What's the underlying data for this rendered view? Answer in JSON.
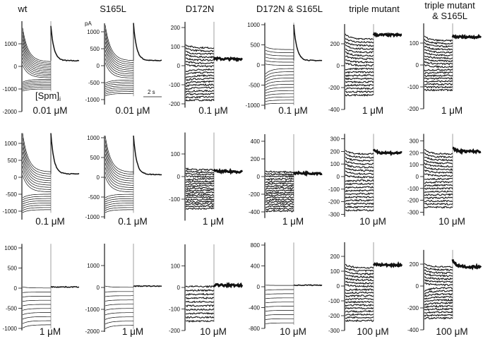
{
  "figure": {
    "column_titles": [
      "wt",
      "S165L",
      "D172N",
      "D172N & S165L",
      "triple mutant",
      "triple mutant\n& S165L"
    ],
    "column_titles_lines": [
      [
        "wt"
      ],
      [
        "S165L"
      ],
      [
        "D172N"
      ],
      [
        "D172N & S165L"
      ],
      [
        "triple mutant"
      ],
      [
        "triple mutant",
        "& S165L"
      ]
    ],
    "y_unit_label": "pA",
    "spm_label": "[Spm]",
    "spm_subscript": "i",
    "time_scale_bar_label": "2 s"
  },
  "chart_data": {
    "type": "line",
    "title": "",
    "xlabel": "",
    "ylabel": "pA",
    "grid": false,
    "scale_bar": {
      "time_s": 2
    },
    "panels": [
      {
        "row": 0,
        "col": 0,
        "construct": "wt",
        "conc_label": "0.01 μM",
        "ticks": [
          1000,
          0,
          -1000,
          -2000
        ],
        "ylim": [
          -2000,
          2000
        ],
        "n_traces": 18,
        "step_range": [
          -1100,
          1700
        ],
        "tail_level": 250,
        "tail_peak": 1800,
        "decay": "strong"
      },
      {
        "row": 0,
        "col": 1,
        "construct": "S165L",
        "conc_label": "0.01 μM",
        "ticks": [
          1000,
          500,
          0,
          -500,
          -1000
        ],
        "ylim": [
          -1150,
          1250
        ],
        "n_traces": 18,
        "step_range": [
          -900,
          1200
        ],
        "tail_level": 150,
        "tail_peak": 1250,
        "decay": "strong"
      },
      {
        "row": 0,
        "col": 2,
        "construct": "D172N",
        "conc_label": "0.1 μM",
        "ticks": [
          200,
          100,
          0,
          -100,
          -200
        ],
        "ylim": [
          -220,
          230
        ],
        "n_traces": 18,
        "step_range": [
          -185,
          110
        ],
        "tail_level": 35,
        "tail_peak": 40,
        "decay": "weak"
      },
      {
        "row": 0,
        "col": 3,
        "construct": "D172N & S165L",
        "conc_label": "0.1 μM",
        "ticks": [
          1000,
          500,
          0,
          -500,
          -1000
        ],
        "ylim": [
          -1100,
          1050
        ],
        "n_traces": 18,
        "step_range": [
          -1000,
          450
        ],
        "tail_level": 110,
        "tail_peak": 1000,
        "decay": "medium"
      },
      {
        "row": 0,
        "col": 4,
        "construct": "triple mutant",
        "conc_label": "1 μM",
        "ticks": [
          200,
          0,
          -200,
          -400
        ],
        "ylim": [
          -400,
          380
        ],
        "n_traces": 18,
        "step_range": [
          -270,
          285
        ],
        "tail_level": 280,
        "tail_peak": 285,
        "decay": "none"
      },
      {
        "row": 0,
        "col": 5,
        "construct": "triple mutant & S165L",
        "conc_label": "1 μM",
        "ticks": [
          100,
          0,
          -100,
          -200
        ],
        "ylim": [
          -200,
          190
        ],
        "n_traces": 18,
        "step_range": [
          -115,
          130
        ],
        "tail_level": 128,
        "tail_peak": 130,
        "decay": "none"
      },
      {
        "row": 1,
        "col": 0,
        "construct": "wt",
        "conc_label": "0.1 μM",
        "ticks": [
          1000,
          500,
          0,
          -500,
          -1000
        ],
        "ylim": [
          -1250,
          1300
        ],
        "n_traces": 18,
        "step_range": [
          -1050,
          1300
        ],
        "tail_level": 100,
        "tail_peak": 1300,
        "decay": "strong"
      },
      {
        "row": 1,
        "col": 1,
        "construct": "S165L",
        "conc_label": "0.1 μM",
        "ticks": [
          1000,
          500,
          0,
          -500,
          -1000
        ],
        "ylim": [
          -1050,
          1050
        ],
        "n_traces": 18,
        "step_range": [
          -900,
          1050
        ],
        "tail_level": 70,
        "tail_peak": 1050,
        "decay": "strong"
      },
      {
        "row": 1,
        "col": 2,
        "construct": "D172N",
        "conc_label": "1 μM",
        "ticks": [
          100,
          0,
          -100
        ],
        "ylim": [
          -195,
          195
        ],
        "n_traces": 18,
        "step_range": [
          -145,
          35
        ],
        "tail_level": 22,
        "tail_peak": 25,
        "decay": "weak"
      },
      {
        "row": 1,
        "col": 3,
        "construct": "D172N & S165L",
        "conc_label": "1 μM",
        "ticks": [
          400,
          200,
          0,
          -200,
          -400
        ],
        "ylim": [
          -470,
          480
        ],
        "n_traces": 18,
        "step_range": [
          -400,
          60
        ],
        "tail_level": 38,
        "tail_peak": 40,
        "decay": "weak"
      },
      {
        "row": 1,
        "col": 4,
        "construct": "triple mutant",
        "conc_label": "10 μM",
        "ticks": [
          300,
          200,
          100,
          0,
          -100,
          -200,
          -300
        ],
        "ylim": [
          -320,
          340
        ],
        "n_traces": 18,
        "step_range": [
          -270,
          210
        ],
        "tail_level": 188,
        "tail_peak": 220,
        "decay": "none"
      },
      {
        "row": 1,
        "col": 5,
        "construct": "triple mutant & S165L",
        "conc_label": "10 μM",
        "ticks": [
          300,
          200,
          100,
          0,
          -100,
          -200,
          -300
        ],
        "ylim": [
          -330,
          360
        ],
        "n_traces": 18,
        "step_range": [
          -260,
          225
        ],
        "tail_level": 212,
        "tail_peak": 240,
        "decay": "none"
      },
      {
        "row": 2,
        "col": 0,
        "construct": "wt",
        "conc_label": "1 μM",
        "ticks": [
          1000,
          500,
          0,
          -500,
          -1000
        ],
        "ylim": [
          -1050,
          1100
        ],
        "n_traces": 10,
        "step_range": [
          -1000,
          30
        ],
        "tail_level": 30,
        "tail_peak": 30,
        "decay": "strong"
      },
      {
        "row": 2,
        "col": 1,
        "construct": "S165L",
        "conc_label": "1 μM",
        "ticks": [
          1000,
          0,
          -1000,
          -2000
        ],
        "ylim": [
          -2050,
          2000
        ],
        "n_traces": 10,
        "step_range": [
          -1900,
          60
        ],
        "tail_level": 60,
        "tail_peak": 60,
        "decay": "strong"
      },
      {
        "row": 2,
        "col": 2,
        "construct": "D172N",
        "conc_label": "10 μM",
        "ticks": [
          100,
          0,
          -100,
          -200
        ],
        "ylim": [
          -200,
          200
        ],
        "n_traces": 10,
        "step_range": [
          -160,
          5
        ],
        "tail_level": 10,
        "tail_peak": 12,
        "decay": "weak"
      },
      {
        "row": 2,
        "col": 3,
        "construct": "D172N & S165L",
        "conc_label": "10 μM",
        "ticks": [
          800,
          400,
          0,
          -400,
          -800
        ],
        "ylim": [
          -800,
          850
        ],
        "n_traces": 10,
        "step_range": [
          -730,
          30
        ],
        "tail_level": 30,
        "tail_peak": 30,
        "decay": "medium"
      },
      {
        "row": 2,
        "col": 4,
        "construct": "triple mutant",
        "conc_label": "100 μM",
        "ticks": [
          200,
          100,
          0,
          -100,
          -200,
          -300
        ],
        "ylim": [
          -300,
          300
        ],
        "n_traces": 18,
        "step_range": [
          -235,
          145
        ],
        "tail_level": 142,
        "tail_peak": 150,
        "decay": "none"
      },
      {
        "row": 2,
        "col": 5,
        "construct": "triple mutant & S165L",
        "conc_label": "100 μM",
        "ticks": [
          200,
          0,
          -200,
          -400
        ],
        "ylim": [
          -400,
          330
        ],
        "n_traces": 18,
        "step_range": [
          -300,
          205
        ],
        "tail_level": 175,
        "tail_peak": 240,
        "decay": "weak"
      }
    ]
  }
}
